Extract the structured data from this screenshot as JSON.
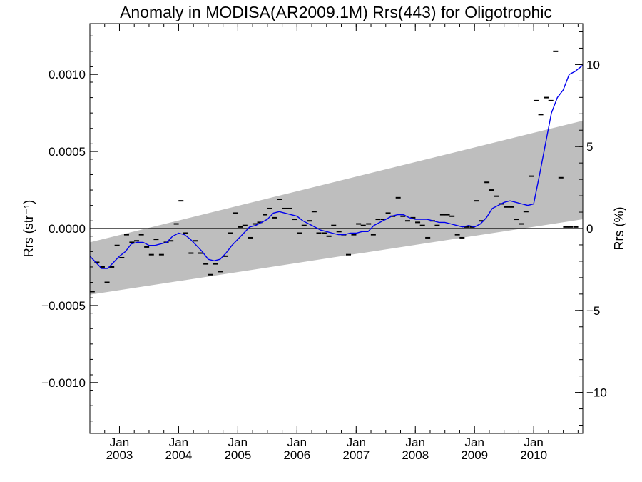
{
  "chart_data": {
    "type": "line",
    "title": "Anomaly in MODISA(AR2009.1M) Rrs(443) for Oligotrophic",
    "ylabel": "Rrs (str⁻¹)",
    "ylabel_right": "Rrs (%)",
    "xlabel": "",
    "ylim": [
      -0.00133,
      0.00133
    ],
    "ylim_right": [
      -12.5,
      12.5
    ],
    "xlim": [
      2002.5,
      2010.83
    ],
    "x_ticks": [
      {
        "x": 2003,
        "month": "Jan",
        "year": "2003"
      },
      {
        "x": 2004,
        "month": "Jan",
        "year": "2004"
      },
      {
        "x": 2005,
        "month": "Jan",
        "year": "2005"
      },
      {
        "x": 2006,
        "month": "Jan",
        "year": "2006"
      },
      {
        "x": 2007,
        "month": "Jan",
        "year": "2007"
      },
      {
        "x": 2008,
        "month": "Jan",
        "year": "2008"
      },
      {
        "x": 2009,
        "month": "Jan",
        "year": "2009"
      },
      {
        "x": 2010,
        "month": "Jan",
        "year": "2010"
      }
    ],
    "y_ticks_left": [
      {
        "v": 0.001,
        "label": "0.0010"
      },
      {
        "v": 0.0005,
        "label": "0.0005"
      },
      {
        "v": 0.0,
        "label": "0.0000"
      },
      {
        "v": -0.0005,
        "label": "−0.0005"
      },
      {
        "v": -0.001,
        "label": "−0.0010"
      }
    ],
    "y_ticks_right": [
      {
        "v": 10,
        "label": "10"
      },
      {
        "v": 5,
        "label": "5"
      },
      {
        "v": 0,
        "label": "0"
      },
      {
        "v": -5,
        "label": "−5"
      },
      {
        "v": -10,
        "label": "−10"
      }
    ],
    "band": {
      "color": "#bebebe",
      "x": [
        2002.5,
        2010.83
      ],
      "upper": [
        -9e-05,
        0.0007
      ],
      "lower": [
        -0.00043,
        6e-05
      ]
    },
    "zero_line": 0,
    "series": [
      {
        "kind": "monthly_markers",
        "color": "#000000",
        "x": [
          2002.54,
          2002.62,
          2002.71,
          2002.79,
          2002.87,
          2002.96,
          2003.04,
          2003.12,
          2003.21,
          2003.29,
          2003.37,
          2003.46,
          2003.54,
          2003.62,
          2003.71,
          2003.79,
          2003.87,
          2003.96,
          2004.04,
          2004.12,
          2004.21,
          2004.29,
          2004.37,
          2004.46,
          2004.54,
          2004.62,
          2004.71,
          2004.79,
          2004.87,
          2004.96,
          2005.04,
          2005.12,
          2005.21,
          2005.29,
          2005.37,
          2005.46,
          2005.54,
          2005.62,
          2005.71,
          2005.79,
          2005.87,
          2005.96,
          2006.04,
          2006.12,
          2006.21,
          2006.29,
          2006.37,
          2006.46,
          2006.54,
          2006.62,
          2006.71,
          2006.79,
          2006.87,
          2006.96,
          2007.04,
          2007.12,
          2007.21,
          2007.29,
          2007.37,
          2007.46,
          2007.54,
          2007.62,
          2007.71,
          2007.79,
          2007.87,
          2007.96,
          2008.04,
          2008.12,
          2008.21,
          2008.29,
          2008.37,
          2008.46,
          2008.54,
          2008.62,
          2008.71,
          2008.79,
          2008.87,
          2008.96,
          2009.04,
          2009.12,
          2009.21,
          2009.29,
          2009.37,
          2009.46,
          2009.54,
          2009.62,
          2009.71,
          2009.79,
          2009.87,
          2009.96,
          2010.04,
          2010.12,
          2010.21,
          2010.29,
          2010.37,
          2010.46,
          2010.54,
          2010.62,
          2010.71
        ],
        "values": [
          -0.00041,
          -0.00022,
          -0.00025,
          -0.00035,
          -0.00025,
          -0.00011,
          -0.00019,
          -4e-05,
          -9e-05,
          -8e-05,
          -4e-05,
          -0.00012,
          -0.00017,
          -7e-05,
          -0.00017,
          -9e-05,
          -8e-05,
          3e-05,
          0.00018,
          -3e-05,
          -0.00016,
          -8e-05,
          -0.00016,
          -0.00023,
          -0.0003,
          -0.00023,
          -0.00028,
          -0.00018,
          -3e-05,
          0.0001,
          1e-05,
          2e-05,
          -6e-05,
          3e-05,
          4e-05,
          9e-05,
          0.00013,
          7e-05,
          0.00019,
          0.00013,
          0.00013,
          6e-05,
          -3e-05,
          2e-05,
          5e-05,
          0.00011,
          -3e-05,
          -3e-05,
          -5e-05,
          2e-05,
          -2e-05,
          -4e-05,
          -0.00017,
          -4e-05,
          3e-05,
          2e-05,
          3e-05,
          -4e-05,
          6e-05,
          6e-05,
          0.0001,
          8e-05,
          0.0002,
          8e-05,
          5e-05,
          7e-05,
          4e-05,
          2e-05,
          -6e-05,
          5e-05,
          2e-05,
          9e-05,
          9e-05,
          8e-05,
          -4e-05,
          -6e-05,
          1e-05,
          1e-05,
          0.00018,
          5e-05,
          0.0003,
          0.00025,
          0.00021,
          0.00016,
          0.00014,
          0.00014,
          6e-05,
          3e-05,
          0.00011,
          0.00034,
          0.00083,
          0.00074,
          0.00085,
          0.00083,
          0.00115,
          0.00033,
          1e-05,
          1e-05,
          1e-05
        ]
      },
      {
        "kind": "smoothed",
        "color": "#0000ee",
        "x": [
          2002.5,
          2002.6,
          2002.7,
          2002.8,
          2002.9,
          2003.0,
          2003.1,
          2003.2,
          2003.3,
          2003.4,
          2003.5,
          2003.6,
          2003.7,
          2003.8,
          2003.9,
          2004.0,
          2004.1,
          2004.2,
          2004.3,
          2004.4,
          2004.5,
          2004.6,
          2004.7,
          2004.8,
          2004.9,
          2005.0,
          2005.1,
          2005.2,
          2005.3,
          2005.4,
          2005.5,
          2005.6,
          2005.7,
          2005.8,
          2005.9,
          2006.0,
          2006.1,
          2006.2,
          2006.3,
          2006.4,
          2006.5,
          2006.6,
          2006.7,
          2006.8,
          2006.9,
          2007.0,
          2007.1,
          2007.2,
          2007.3,
          2007.4,
          2007.5,
          2007.6,
          2007.7,
          2007.8,
          2007.9,
          2008.0,
          2008.1,
          2008.2,
          2008.3,
          2008.4,
          2008.5,
          2008.6,
          2008.7,
          2008.8,
          2008.9,
          2009.0,
          2009.1,
          2009.2,
          2009.3,
          2009.4,
          2009.5,
          2009.6,
          2009.7,
          2009.8,
          2009.9,
          2010.0,
          2010.1,
          2010.2,
          2010.3,
          2010.4,
          2010.5,
          2010.6,
          2010.7,
          2010.83
        ],
        "values": [
          -0.00018,
          -0.00022,
          -0.00026,
          -0.00026,
          -0.00022,
          -0.00018,
          -0.00015,
          -0.0001,
          -9e-05,
          -9e-05,
          -0.00011,
          -0.00011,
          -0.0001,
          -9e-05,
          -5e-05,
          -3e-05,
          -4e-05,
          -7e-05,
          -0.00011,
          -0.00015,
          -0.0002,
          -0.00021,
          -0.0002,
          -0.00016,
          -0.00011,
          -7e-05,
          -3e-05,
          1e-05,
          2e-05,
          4e-05,
          6e-05,
          0.0001,
          0.00011,
          0.0001,
          9e-05,
          8e-05,
          5e-05,
          3e-05,
          1e-05,
          -1e-05,
          -2e-05,
          -3e-05,
          -4e-05,
          -4e-05,
          -3e-05,
          -3e-05,
          -2e-05,
          -2e-05,
          2e-05,
          4e-05,
          6e-05,
          8e-05,
          9e-05,
          9e-05,
          7e-05,
          6e-05,
          6e-05,
          6e-05,
          5e-05,
          4e-05,
          4e-05,
          3e-05,
          2e-05,
          1e-05,
          2e-05,
          1e-05,
          3e-05,
          7e-05,
          0.00013,
          0.00015,
          0.00017,
          0.00018,
          0.00017,
          0.00016,
          0.00015,
          0.00016,
          0.00035,
          0.00055,
          0.00075,
          0.00085,
          0.0009,
          0.001,
          0.00102,
          0.00106
        ]
      }
    ]
  }
}
